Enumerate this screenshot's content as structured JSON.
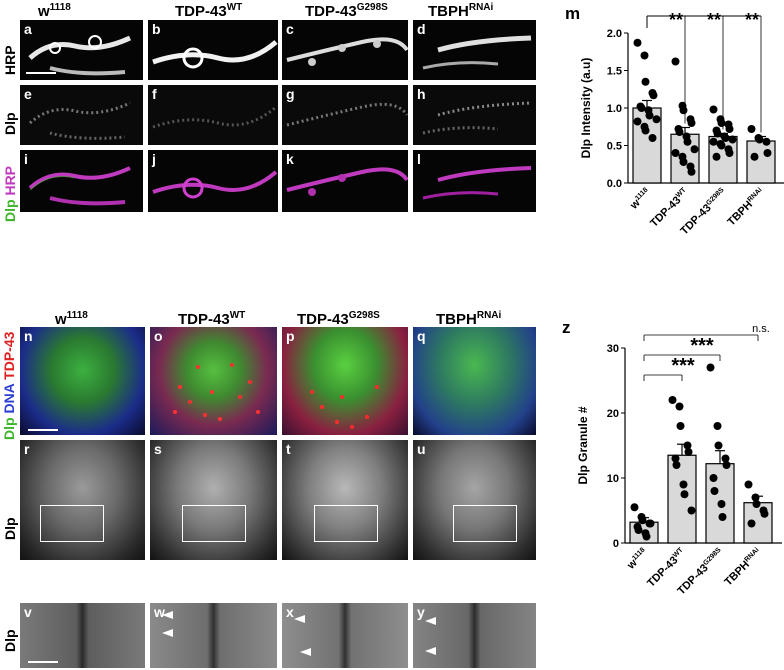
{
  "columns_top": [
    {
      "base": "w",
      "sup": "1118"
    },
    {
      "base": "TDP-43",
      "sup": "WT"
    },
    {
      "base": "TDP-43",
      "sup": "G298S"
    },
    {
      "base": "TBPH",
      "sup": "RNAi"
    }
  ],
  "columns_bottom": [
    {
      "base": "w",
      "sup": "1118"
    },
    {
      "base": "TDP-43",
      "sup": "WT"
    },
    {
      "base": "TDP-43",
      "sup": "G298S"
    },
    {
      "base": "TBPH",
      "sup": "RNAi"
    }
  ],
  "row_labels_top": {
    "hrp": "HRP",
    "dlp": "Dlp",
    "merge": {
      "dlp": "Dlp",
      "hrp": "HRP"
    }
  },
  "row_labels_bottom": {
    "merge": {
      "dlp": "Dlp",
      "dna": "DNA",
      "tdp": "TDP-43"
    },
    "dlp1": "Dlp",
    "dlp2": "Dlp"
  },
  "panel_letters": [
    "a",
    "b",
    "c",
    "d",
    "e",
    "f",
    "g",
    "h",
    "i",
    "j",
    "k",
    "l",
    "n",
    "o",
    "p",
    "q",
    "r",
    "s",
    "t",
    "u",
    "v",
    "w",
    "x",
    "y"
  ],
  "colors": {
    "green": "#3fb52c",
    "magenta": "#c03ac0",
    "red": "#e02020",
    "blue": "#2a3fd0",
    "bar_fill": "#d9d9d9"
  },
  "chart_data": [
    {
      "panel": "m",
      "type": "bar",
      "ylabel": "Dlp Intensity (a.u)",
      "ylim": [
        0,
        2.0
      ],
      "yticks": [
        "0.0",
        "0.5",
        "1.0",
        "1.5",
        "2.0"
      ],
      "categories": [
        {
          "base": "w",
          "sup": "1118"
        },
        {
          "base": "TDP-43",
          "sup": "WT"
        },
        {
          "base": "TDP-43",
          "sup": "G298S"
        },
        {
          "base": "TBPH",
          "sup": "RNAi"
        }
      ],
      "means": [
        1.0,
        0.65,
        0.62,
        0.56
      ],
      "sem": [
        0.1,
        0.09,
        0.04,
        0.06
      ],
      "points": [
        [
          1.87,
          1.7,
          1.35,
          1.2,
          1.17,
          1.02,
          1.0,
          0.97,
          0.9,
          0.85,
          0.82,
          0.75,
          0.7,
          0.6
        ],
        [
          1.62,
          1.03,
          0.97,
          0.85,
          0.8,
          0.72,
          0.68,
          0.62,
          0.55,
          0.45,
          0.4,
          0.35,
          0.28,
          0.22,
          0.15
        ],
        [
          0.98,
          0.85,
          0.8,
          0.78,
          0.72,
          0.7,
          0.66,
          0.62,
          0.6,
          0.58,
          0.55,
          0.52,
          0.5,
          0.45,
          0.4,
          0.35
        ],
        [
          0.72,
          0.6,
          0.58,
          0.55,
          0.4,
          0.35
        ]
      ],
      "significance": [
        "**",
        "**",
        "**"
      ]
    },
    {
      "panel": "z",
      "type": "bar",
      "ylabel": "Dlp Granule #",
      "ylim": [
        0,
        30
      ],
      "yticks": [
        "0",
        "10",
        "20",
        "30"
      ],
      "categories": [
        {
          "base": "w",
          "sup": "1118"
        },
        {
          "base": "TDP-43",
          "sup": "WT"
        },
        {
          "base": "TDP-43",
          "sup": "G298S"
        },
        {
          "base": "TBPH",
          "sup": "RNAi"
        }
      ],
      "means": [
        3.2,
        13.5,
        12.2,
        6.2
      ],
      "sem": [
        0.7,
        1.7,
        2.0,
        1.0
      ],
      "points": [
        [
          5.5,
          4,
          3.5,
          3,
          3,
          2.5,
          2,
          1.5,
          1
        ],
        [
          22,
          21,
          18,
          15,
          14,
          13,
          12,
          9,
          7.5,
          5
        ],
        [
          27,
          18,
          15,
          13,
          12,
          10,
          8,
          6,
          4
        ],
        [
          9,
          7,
          6,
          5,
          4.5,
          3
        ]
      ],
      "significance": [
        "***",
        "***",
        "n.s."
      ]
    }
  ]
}
